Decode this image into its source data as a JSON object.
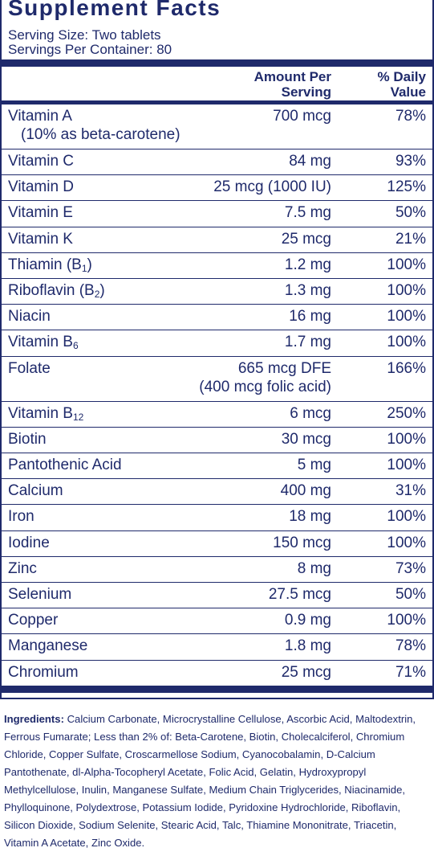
{
  "header": {
    "title": "Supplement Facts",
    "serving_size": "Serving Size: Two tablets",
    "servings_per_container": "Servings Per Container: 80"
  },
  "columns": {
    "amount_line1": "Amount Per",
    "amount_line2": "Serving",
    "dv_line1": "% Daily",
    "dv_line2": "Value"
  },
  "nutrients": [
    {
      "name": "Vitamin A",
      "name_line2": "(10% as beta-carotene)",
      "amount": "700 mcg",
      "dv": "78%"
    },
    {
      "name": "Vitamin C",
      "amount": "84 mg",
      "dv": "93%"
    },
    {
      "name": "Vitamin D",
      "amount": "25 mcg (1000 IU)",
      "dv": "125%"
    },
    {
      "name": "Vitamin E",
      "amount": "7.5 mg",
      "dv": "50%"
    },
    {
      "name": "Vitamin K",
      "amount": "25 mcg",
      "dv": "21%"
    },
    {
      "name": "Thiamin (B",
      "subscript": "1",
      "name_suffix": ")",
      "amount": "1.2 mg",
      "dv": "100%"
    },
    {
      "name": "Riboflavin (B",
      "subscript": "2",
      "name_suffix": ")",
      "amount": "1.3 mg",
      "dv": "100%"
    },
    {
      "name": "Niacin",
      "amount": "16 mg",
      "dv": "100%"
    },
    {
      "name": "Vitamin B",
      "subscript": "6",
      "amount": "1.7 mg",
      "dv": "100%"
    },
    {
      "name": "Folate",
      "amount": "665 mcg DFE",
      "amount_line2": "(400 mcg folic acid)",
      "dv": "166%"
    },
    {
      "name": "Vitamin B",
      "subscript": "12",
      "amount": "6 mcg",
      "dv": "250%"
    },
    {
      "name": "Biotin",
      "amount": "30 mcg",
      "dv": "100%"
    },
    {
      "name": "Pantothenic Acid",
      "amount": "5 mg",
      "dv": "100%"
    },
    {
      "name": "Calcium",
      "amount": "400 mg",
      "dv": "31%"
    },
    {
      "name": "Iron",
      "amount": "18 mg",
      "dv": "100%"
    },
    {
      "name": "Iodine",
      "amount": "150 mcg",
      "dv": "100%"
    },
    {
      "name": "Zinc",
      "amount": "8 mg",
      "dv": "73%"
    },
    {
      "name": "Selenium",
      "amount": "27.5 mcg",
      "dv": "50%"
    },
    {
      "name": "Copper",
      "amount": "0.9 mg",
      "dv": "100%"
    },
    {
      "name": "Manganese",
      "amount": "1.8 mg",
      "dv": "78%"
    },
    {
      "name": "Chromium",
      "amount": "25 mcg",
      "dv": "71%"
    }
  ],
  "ingredients": {
    "label": "Ingredients:",
    "text": "Calcium Carbonate, Microcrystalline Cellulose, Ascorbic Acid, Maltodextrin, Ferrous Fumarate; Less than 2% of: Beta-Carotene, Biotin, Cholecalciferol, Chromium Chloride, Copper Sulfate, Croscarmellose Sodium, Cyanocobalamin, D-Calcium Pantothenate, dl-Alpha-Tocopheryl Acetate, Folic Acid, Gelatin, Hydroxypropyl Methylcellulose, Inulin, Manganese Sulfate, Medium Chain Triglycerides, Niacinamide, Phylloquinone, Polydextrose, Potassium Iodide, Pyridoxine Hydrochloride, Riboflavin, Silicon Dioxide, Sodium Selenite, Stearic Acid, Talc, Thiamine Mononitrate, Triacetin, Vitamin A Acetate, Zinc Oxide."
  }
}
